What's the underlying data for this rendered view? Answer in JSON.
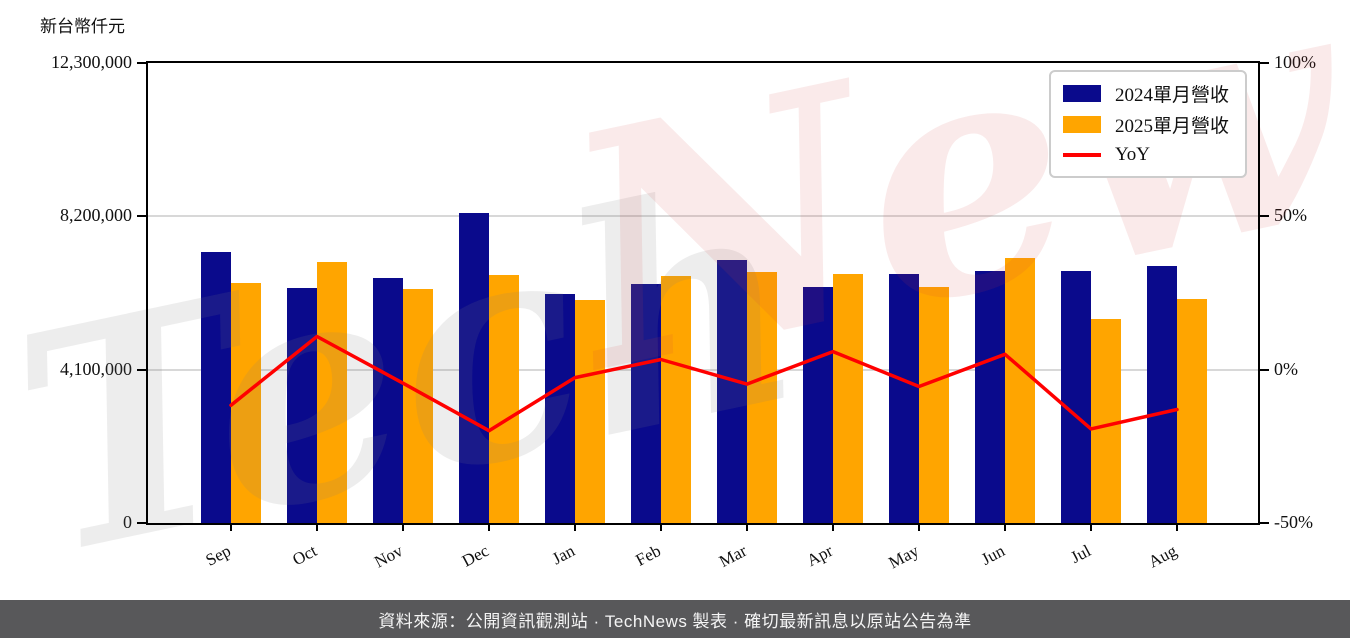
{
  "page": {
    "unit_label": "新台幣仟元",
    "footer": "資料來源：公開資訊觀測站 · TechNews 製表 · 確切最新訊息以原站公告為準",
    "watermark": {
      "left": "Tech",
      "right": "News"
    }
  },
  "legend": {
    "items": [
      {
        "label": "2024單月營收",
        "swatch": "box",
        "color": "#0a0a8c"
      },
      {
        "label": "2025單月營收",
        "swatch": "box",
        "color": "#ffa500"
      },
      {
        "label": "YoY",
        "swatch": "line",
        "color": "#ff0000"
      }
    ]
  },
  "chart_data": {
    "type": "bar+line",
    "title": "",
    "categories": [
      "Sep",
      "Oct",
      "Nov",
      "Dec",
      "Jan",
      "Feb",
      "Mar",
      "Apr",
      "May",
      "Jun",
      "Jul",
      "Aug"
    ],
    "series": [
      {
        "name": "2024單月營收",
        "color": "#0a0a8c",
        "values": [
          7250000,
          6290000,
          6540000,
          8280000,
          6120000,
          6390000,
          7030000,
          6300000,
          6670000,
          6750000,
          6750000,
          6880000
        ]
      },
      {
        "name": "2025單月營收",
        "color": "#ffa500",
        "values": [
          6410000,
          6970000,
          6250000,
          6630000,
          5960000,
          6600000,
          6700000,
          6670000,
          6300000,
          7090000,
          5450000,
          5990000
        ]
      }
    ],
    "line_series": {
      "name": "YoY",
      "color": "#ff0000",
      "unit": "%",
      "values": [
        -11.6,
        10.8,
        -4.4,
        -19.9,
        -2.6,
        3.3,
        -4.7,
        5.9,
        -5.5,
        5.0,
        -19.3,
        -13.0
      ]
    },
    "left_axis": {
      "label": "新台幣仟元",
      "min": 0,
      "max": 12300000,
      "ticks": [
        {
          "value": 12300000,
          "label": "12,300,000"
        },
        {
          "value": 8200000,
          "label": "8,200,000"
        },
        {
          "value": 4100000,
          "label": "4,100,000"
        },
        {
          "value": 0,
          "label": "0"
        }
      ],
      "grid_values": [
        8200000,
        4100000
      ]
    },
    "right_axis": {
      "min": -50,
      "max": 100,
      "ticks": [
        {
          "value": 100,
          "label": "100%"
        },
        {
          "value": 50,
          "label": "50%"
        },
        {
          "value": 0,
          "label": "0%"
        },
        {
          "value": -50,
          "label": "-50%"
        }
      ]
    },
    "legend_position": "top-right",
    "grid": "horizontal-only"
  }
}
